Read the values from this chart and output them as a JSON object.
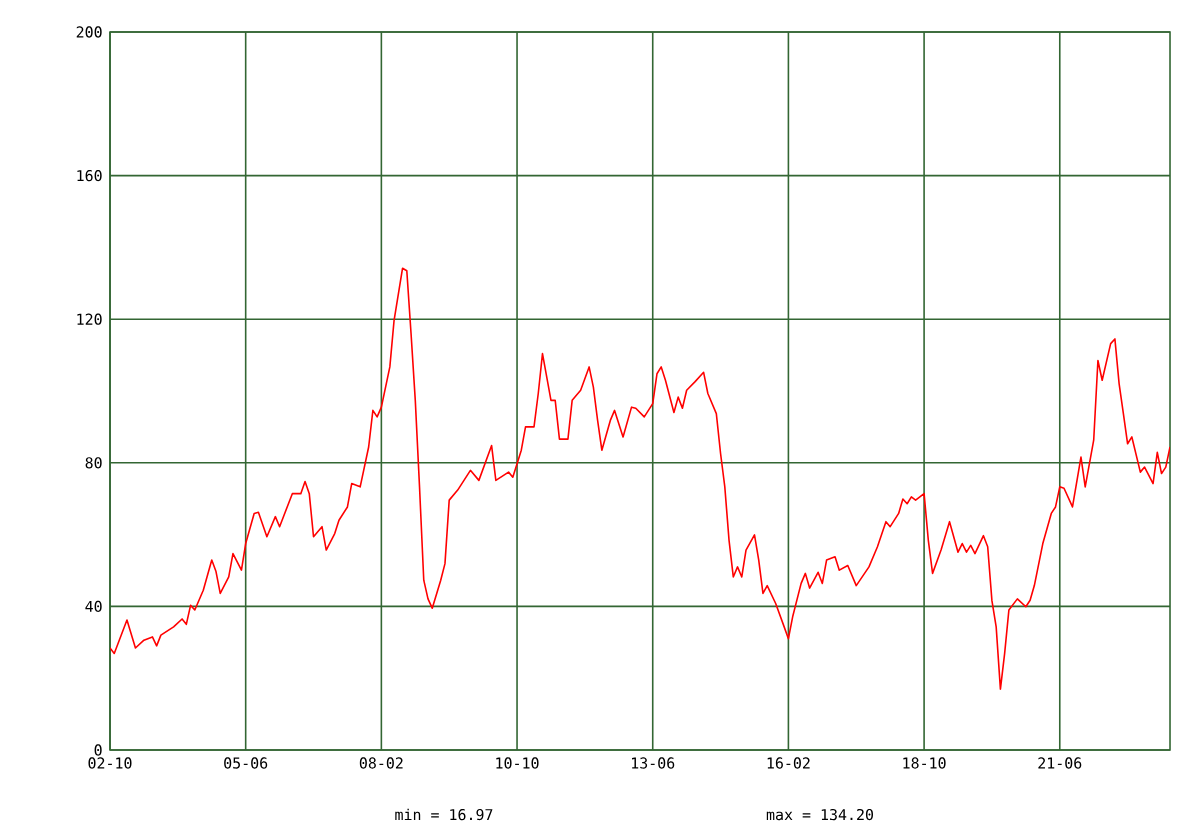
{
  "chart_data": {
    "type": "line",
    "x": [
      "2002-10",
      "2002-11",
      "2003-02",
      "2003-04",
      "2003-06",
      "2003-08",
      "2003-09",
      "2003-10",
      "2004-01",
      "2004-03",
      "2004-04",
      "2004-05",
      "2004-06",
      "2004-08",
      "2004-10",
      "2004-11",
      "2004-12",
      "2005-02",
      "2005-03",
      "2005-05",
      "2005-06",
      "2005-08",
      "2005-09",
      "2005-11",
      "2006-01",
      "2006-02",
      "2006-05",
      "2006-07",
      "2006-08",
      "2006-09",
      "2006-10",
      "2006-12",
      "2007-01",
      "2007-03",
      "2007-04",
      "2007-06",
      "2007-07",
      "2007-09",
      "2007-11",
      "2007-12",
      "2008-01",
      "2008-02",
      "2008-04",
      "2008-05",
      "2008-07",
      "2008-08",
      "2008-09",
      "2008-10",
      "2008-11",
      "2008-12",
      "2009-01",
      "2009-02",
      "2009-04",
      "2009-05",
      "2009-06",
      "2009-08",
      "2009-11",
      "2010-01",
      "2010-04",
      "2010-05",
      "2010-08",
      "2010-09",
      "2010-11",
      "2010-12",
      "2011-02",
      "2011-03",
      "2011-04",
      "2011-06",
      "2011-07",
      "2011-08",
      "2011-10",
      "2011-11",
      "2012-01",
      "2012-03",
      "2012-04",
      "2012-05",
      "2012-06",
      "2012-08",
      "2012-09",
      "2012-11",
      "2013-01",
      "2013-02",
      "2013-04",
      "2013-06",
      "2013-07",
      "2013-08",
      "2013-09",
      "2013-11",
      "2013-12",
      "2014-01",
      "2014-02",
      "2014-04",
      "2014-06",
      "2014-07",
      "2014-09",
      "2014-10",
      "2014-11",
      "2014-12",
      "2015-01",
      "2015-02",
      "2015-03",
      "2015-04",
      "2015-06",
      "2015-07",
      "2015-08",
      "2015-09",
      "2015-11",
      "2016-01",
      "2016-02",
      "2016-03",
      "2016-05",
      "2016-06",
      "2016-07",
      "2016-09",
      "2016-10",
      "2016-11",
      "2017-01",
      "2017-02",
      "2017-04",
      "2017-06",
      "2017-09",
      "2017-11",
      "2018-01",
      "2018-02",
      "2018-04",
      "2018-05",
      "2018-06",
      "2018-07",
      "2018-08",
      "2018-10",
      "2018-11",
      "2018-12",
      "2019-02",
      "2019-04",
      "2019-06",
      "2019-07",
      "2019-08",
      "2019-09",
      "2019-10",
      "2019-12",
      "2020-01",
      "2020-02",
      "2020-03",
      "2020-04",
      "2020-05",
      "2020-06",
      "2020-08",
      "2020-10",
      "2020-11",
      "2020-12",
      "2021-02",
      "2021-04",
      "2021-05",
      "2021-06",
      "2021-07",
      "2021-09",
      "2021-11",
      "2021-12",
      "2022-02",
      "2022-03",
      "2022-04",
      "2022-06",
      "2022-07",
      "2022-08",
      "2022-09",
      "2022-10",
      "2022-11",
      "2023-01",
      "2023-02",
      "2023-04",
      "2023-05",
      "2023-06",
      "2023-07",
      "2023-08"
    ],
    "values": [
      28.4,
      26.9,
      36.2,
      28.4,
      30.6,
      31.5,
      29,
      32,
      34.3,
      36.5,
      35,
      40.3,
      39,
      44.5,
      52.9,
      49.7,
      43.6,
      48.2,
      54.7,
      50.1,
      57.5,
      65.9,
      66.2,
      59.4,
      65,
      62.2,
      71.4,
      71.4,
      74.8,
      71.4,
      59.4,
      62.2,
      55.7,
      60.3,
      64,
      67.7,
      74.2,
      73.3,
      84.4,
      94.6,
      92.8,
      95.5,
      106.7,
      119.7,
      134.2,
      133.5,
      116,
      97.4,
      73.3,
      47.3,
      42.1,
      39.5,
      47.3,
      51.9,
      69.6,
      72.4,
      77.9,
      75.1,
      84.8,
      75.1,
      77.4,
      76,
      83.5,
      90,
      90,
      99.3,
      110.4,
      97.4,
      97.4,
      86.6,
      86.6,
      97.4,
      100.2,
      106.7,
      101.1,
      91.8,
      83.5,
      91.8,
      94.6,
      87.2,
      95.5,
      95.2,
      92.8,
      96.5,
      104.8,
      106.7,
      103,
      94,
      98.3,
      95.2,
      100.2,
      102.6,
      105.2,
      99.3,
      93.7,
      82.6,
      73.3,
      58.4,
      48.2,
      51,
      48.2,
      55.7,
      59.9,
      52.9,
      43.6,
      45.8,
      40.8,
      34.3,
      31,
      37.1,
      46.4,
      49.2,
      45.1,
      49.5,
      46.4,
      52.9,
      53.8,
      50.1,
      51.4,
      45.8,
      51,
      56.6,
      63.6,
      62.2,
      65.9,
      69.9,
      68.6,
      70.5,
      69.6,
      71.4,
      58.4,
      49.2,
      55.7,
      63.6,
      55.1,
      57.5,
      55.1,
      57,
      54.7,
      59.7,
      56.6,
      41.6,
      34.3,
      16.97,
      26.9,
      39,
      42.1,
      39.9,
      41.7,
      45.8,
      57.5,
      65.9,
      67.7,
      73.3,
      72.9,
      67.7,
      81.6,
      73.3,
      86.3,
      108.5,
      103,
      113.2,
      114.5,
      102,
      93.7,
      85.3,
      87.2,
      77.4,
      78.8,
      74.2,
      82.9,
      77,
      78.8,
      84.4
    ],
    "color": "#ff0000",
    "xlim": [
      "2002-10",
      "2023-08"
    ],
    "xticks": [
      {
        "value": "2002-10",
        "label": "02-10"
      },
      {
        "value": "2005-06",
        "label": "05-06"
      },
      {
        "value": "2008-02",
        "label": "08-02"
      },
      {
        "value": "2010-10",
        "label": "10-10"
      },
      {
        "value": "2013-06",
        "label": "13-06"
      },
      {
        "value": "2016-02",
        "label": "16-02"
      },
      {
        "value": "2018-10",
        "label": "18-10"
      },
      {
        "value": "2021-06",
        "label": "21-06"
      }
    ],
    "ylim": [
      0,
      200
    ],
    "yticks": [
      0,
      40,
      80,
      120,
      160,
      200
    ],
    "grid": true,
    "marker": "none",
    "line_style": "solid",
    "annotations": [
      "min = 16.97",
      "max = 134.20"
    ]
  }
}
